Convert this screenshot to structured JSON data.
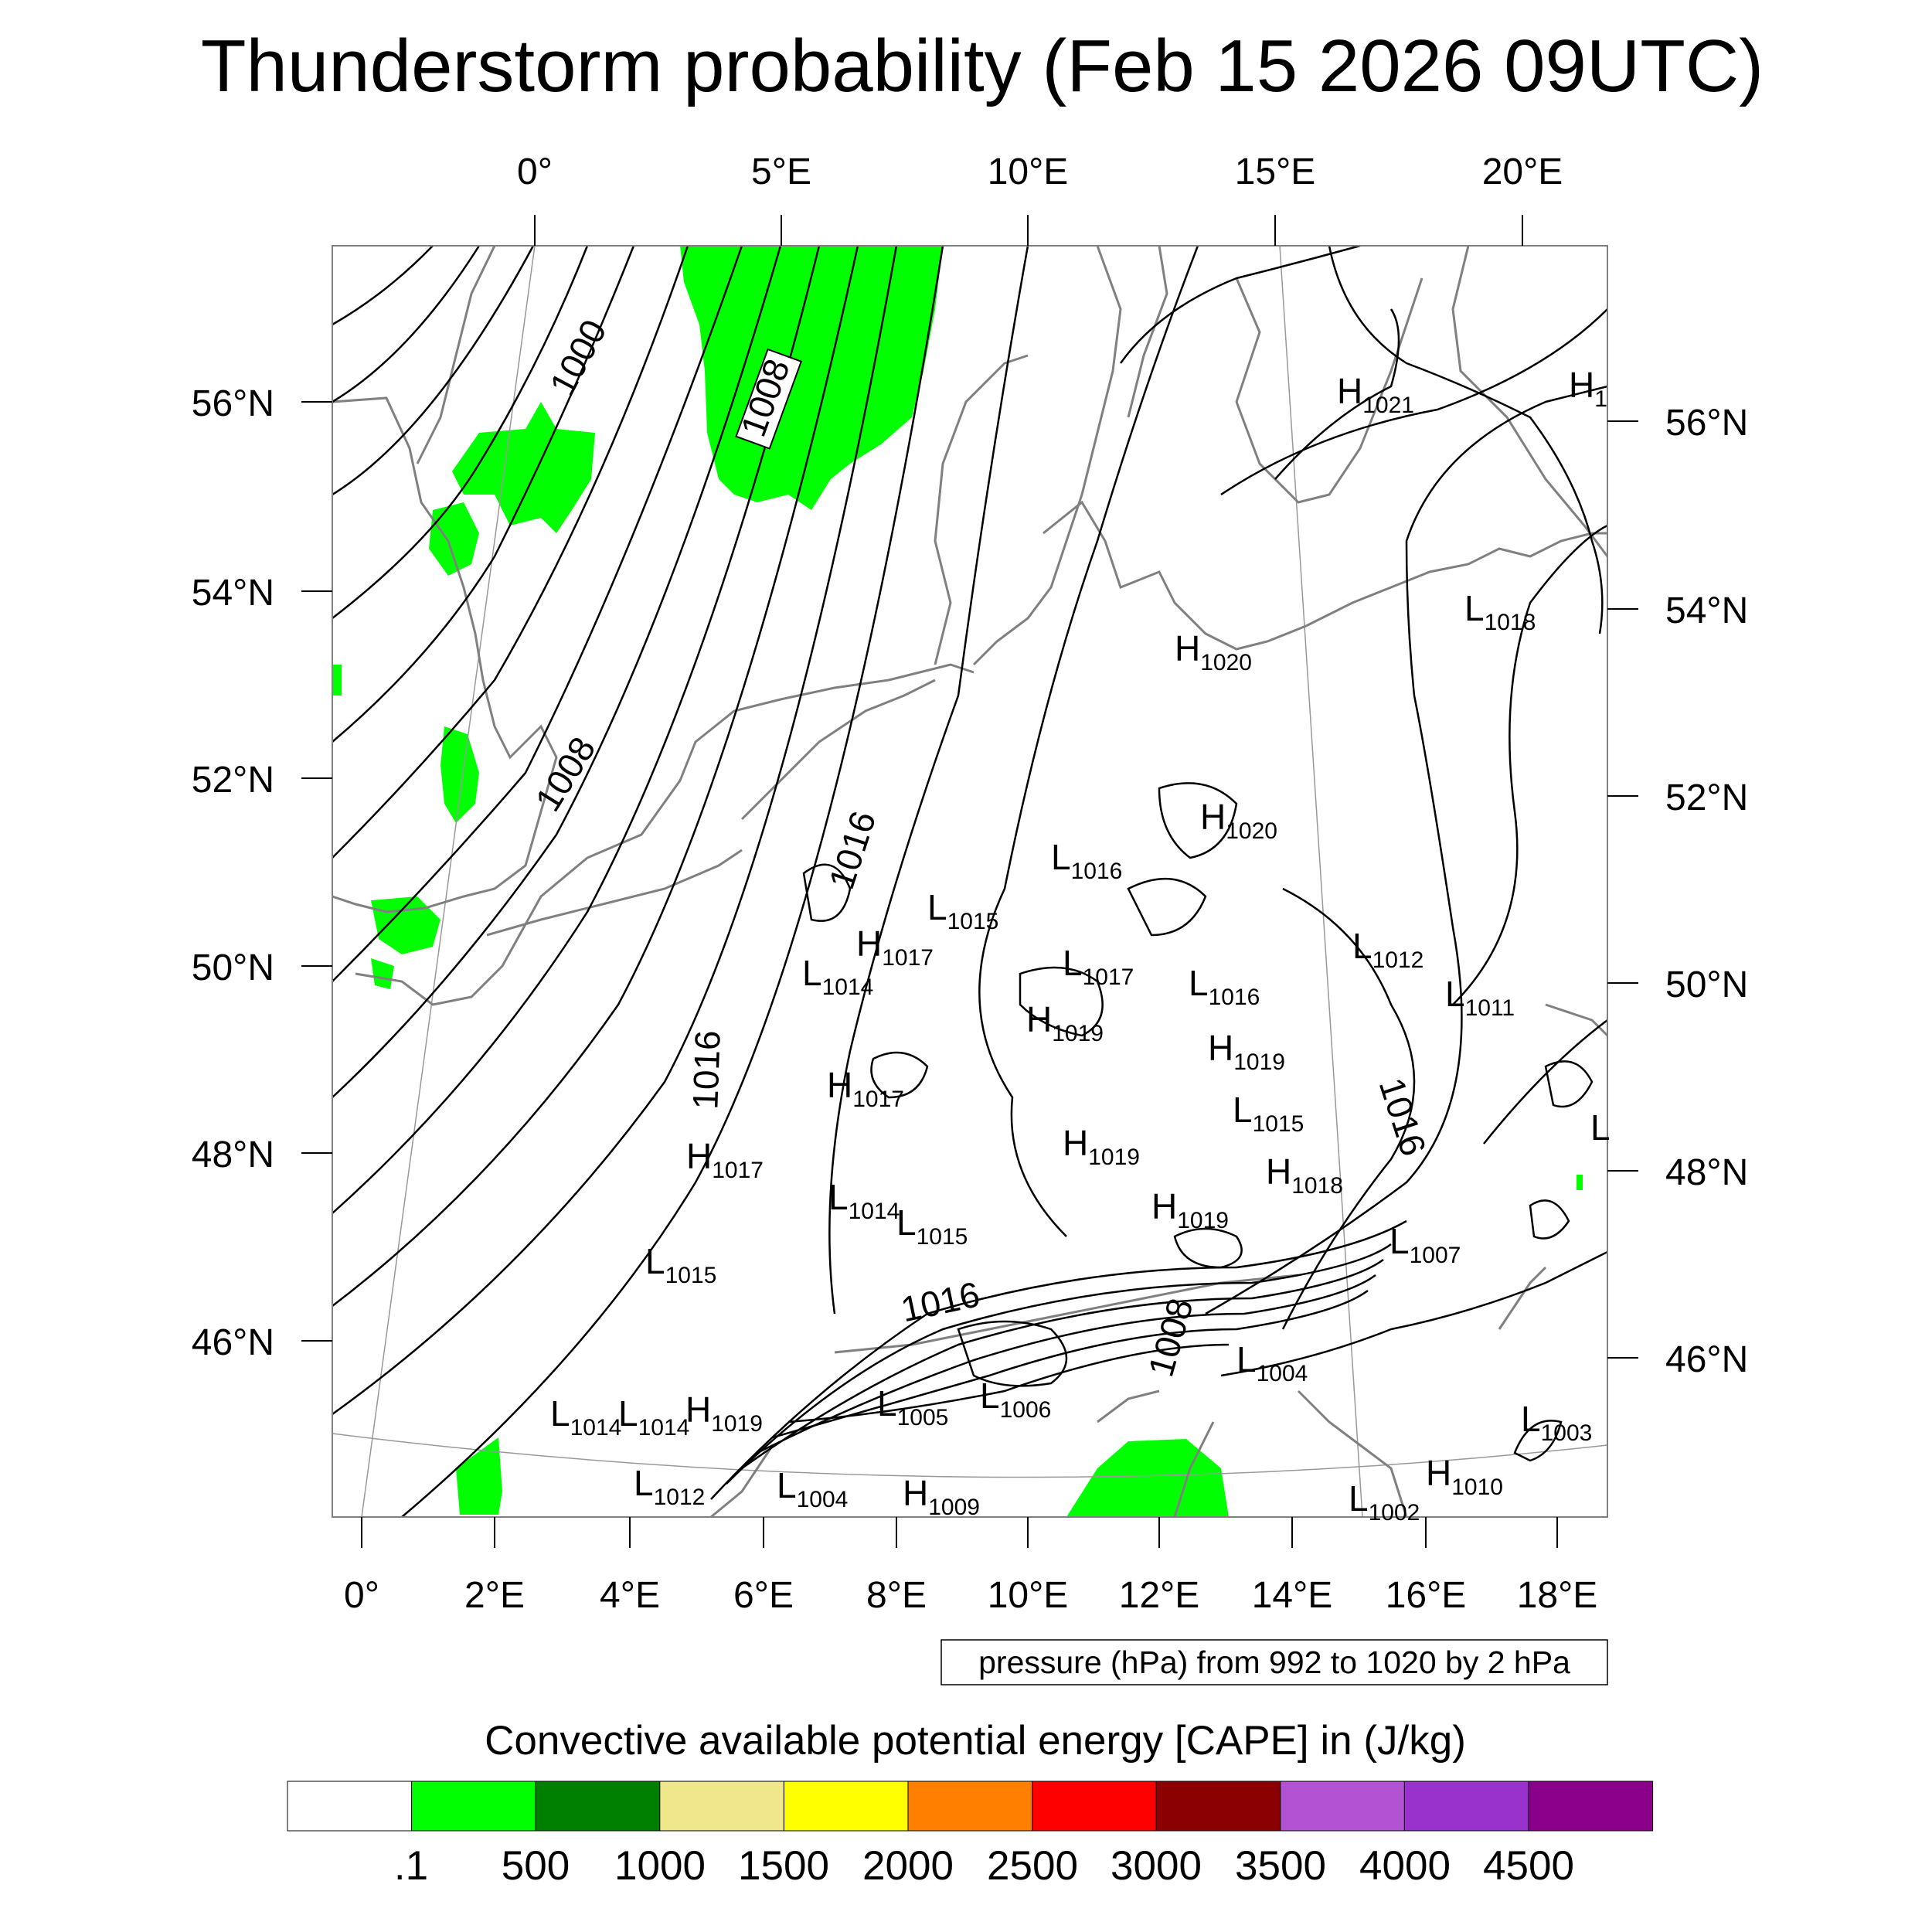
{
  "title": "Thunderstorm probability (Feb 15 2026 09UTC)",
  "top_lon_labels": [
    "0°",
    "5°E",
    "10°E",
    "15°E",
    "20°E"
  ],
  "bottom_lon_labels": [
    "0°",
    "2°E",
    "4°E",
    "6°E",
    "8°E",
    "10°E",
    "12°E",
    "14°E",
    "16°E",
    "18°E"
  ],
  "left_lat_labels": [
    "56°N",
    "54°N",
    "52°N",
    "50°N",
    "48°N",
    "46°N"
  ],
  "right_lat_labels": [
    "56°N",
    "54°N",
    "52°N",
    "50°N",
    "48°N",
    "46°N"
  ],
  "pressure_note": "pressure (hPa) from 992 to 1020 by 2 hPa",
  "colorbar": {
    "title": "Convective available potential energy [CAPE] in (J/kg)",
    "labels": [
      ".1",
      "500",
      "1000",
      "1500",
      "2000",
      "2500",
      "3000",
      "3500",
      "4000",
      "4500"
    ],
    "colors": [
      "#ffffff",
      "#00ff00",
      "#008000",
      "#f0e68c",
      "#ffff00",
      "#ff8000",
      "#ff0000",
      "#8b0000",
      "#b452d4",
      "#9932cc",
      "#8b008b"
    ]
  },
  "pressure_systems": [
    {
      "type": "H",
      "value": "1021"
    },
    {
      "type": "H",
      "value": "1"
    },
    {
      "type": "L",
      "value": "1018"
    },
    {
      "type": "H",
      "value": "1020"
    },
    {
      "type": "H",
      "value": "1020"
    },
    {
      "type": "L",
      "value": "1016"
    },
    {
      "type": "L",
      "value": "1015"
    },
    {
      "type": "H",
      "value": "1017"
    },
    {
      "type": "L",
      "value": "1014"
    },
    {
      "type": "L",
      "value": "1017"
    },
    {
      "type": "L",
      "value": "1016"
    },
    {
      "type": "L",
      "value": "1012"
    },
    {
      "type": "L",
      "value": "1011"
    },
    {
      "type": "H",
      "value": "1019"
    },
    {
      "type": "H",
      "value": "1019"
    },
    {
      "type": "L",
      "value": "1015"
    },
    {
      "type": "H",
      "value": "1017"
    },
    {
      "type": "H",
      "value": "1017"
    },
    {
      "type": "H",
      "value": "1019"
    },
    {
      "type": "H",
      "value": "1018"
    },
    {
      "type": "L",
      "value": "1014"
    },
    {
      "type": "H",
      "value": "1019"
    },
    {
      "type": "L",
      "value": "1015"
    },
    {
      "type": "L",
      "value": "1007"
    },
    {
      "type": "L",
      "value": "1015"
    },
    {
      "type": "L",
      "value": "1004"
    },
    {
      "type": "L",
      "value": "1014"
    },
    {
      "type": "L",
      "value": "1014"
    },
    {
      "type": "H",
      "value": "1019"
    },
    {
      "type": "L",
      "value": "1005"
    },
    {
      "type": "L",
      "value": "1006"
    },
    {
      "type": "L",
      "value": "1003"
    },
    {
      "type": "L",
      "value": "1012"
    },
    {
      "type": "L",
      "value": "1004"
    },
    {
      "type": "H",
      "value": "1009"
    },
    {
      "type": "H",
      "value": "1010"
    },
    {
      "type": "L",
      "value": "1002"
    },
    {
      "type": "L",
      "value": ""
    }
  ],
  "contour_labels": [
    "1000",
    "1008",
    "1008",
    "1016",
    "1016",
    "1016",
    "1016",
    "1008"
  ]
}
